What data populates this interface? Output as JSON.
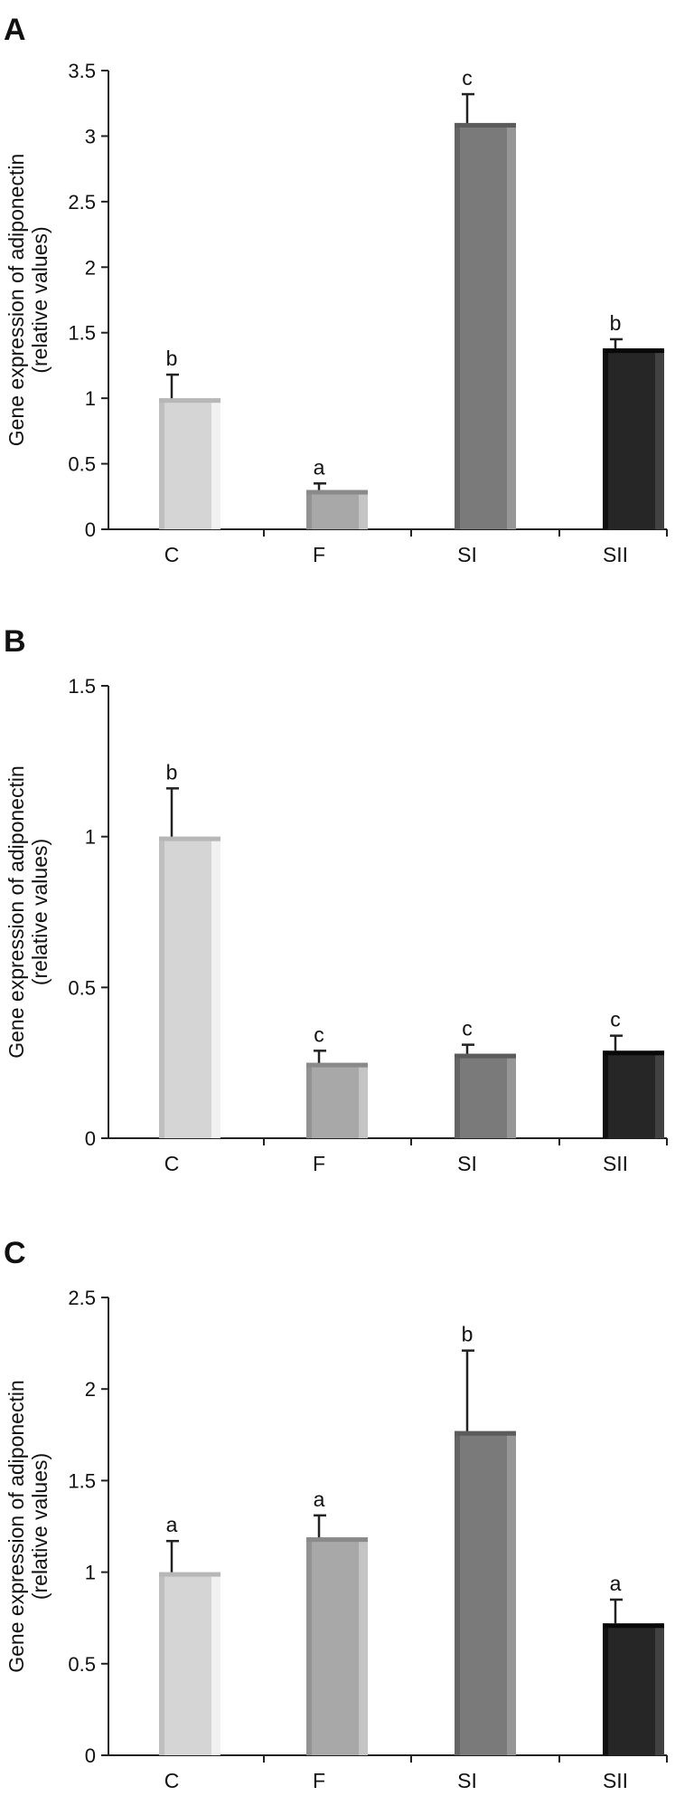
{
  "colors": {
    "C": "#d5d5d5",
    "F": "#a8a8a8",
    "SI": "#7a7a7a",
    "SII": "#262626"
  },
  "chart_data": [
    {
      "panel": "A",
      "type": "bar",
      "categories": [
        "C",
        "F",
        "SI",
        "SII"
      ],
      "values": [
        1.0,
        0.3,
        3.1,
        1.38
      ],
      "errors": [
        0.18,
        0.05,
        0.22,
        0.07
      ],
      "significance": [
        "b",
        "a",
        "c",
        "b"
      ],
      "ylabel": [
        "Gene expression of adiponectin",
        "(relative values)"
      ],
      "ylim": [
        0,
        3.5
      ],
      "yticks": [
        0,
        0.5,
        1,
        1.5,
        2,
        2.5,
        3,
        3.5
      ],
      "ytick_labels": [
        "0",
        "0.5",
        "1",
        "1.5",
        "2",
        "2.5",
        "3",
        "3.5"
      ]
    },
    {
      "panel": "B",
      "type": "bar",
      "categories": [
        "C",
        "F",
        "SI",
        "SII"
      ],
      "values": [
        1.0,
        0.25,
        0.28,
        0.29
      ],
      "errors": [
        0.16,
        0.04,
        0.03,
        0.05
      ],
      "significance": [
        "b",
        "c",
        "c",
        "c"
      ],
      "ylabel": [
        "Gene expression of adiponectin",
        "(relative values)"
      ],
      "ylim": [
        0,
        1.5
      ],
      "yticks": [
        0,
        0.5,
        1,
        1.5
      ],
      "ytick_labels": [
        "0",
        "0.5",
        "1",
        "1.5"
      ]
    },
    {
      "panel": "C",
      "type": "bar",
      "categories": [
        "C",
        "F",
        "SI",
        "SII"
      ],
      "values": [
        1.0,
        1.19,
        1.77,
        0.72
      ],
      "errors": [
        0.17,
        0.12,
        0.44,
        0.13
      ],
      "significance": [
        "a",
        "a",
        "b",
        "a"
      ],
      "ylabel": [
        "Gene expression of adiponectin",
        "(relative values)"
      ],
      "ylim": [
        0,
        2.5
      ],
      "yticks": [
        0,
        0.5,
        1,
        1.5,
        2,
        2.5
      ],
      "ytick_labels": [
        "0",
        "0.5",
        "1",
        "1.5",
        "2",
        "2.5"
      ]
    }
  ]
}
